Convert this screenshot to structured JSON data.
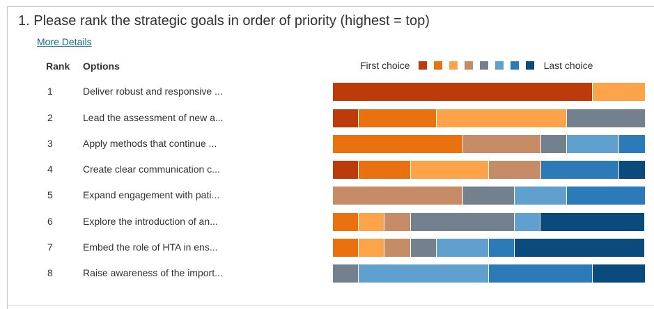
{
  "question": {
    "number": "1.",
    "title": "Please rank the strategic goals in order of priority (highest = top)"
  },
  "more_details": "More Details",
  "table": {
    "rank_header": "Rank",
    "options_header": "Options"
  },
  "legend": {
    "first_label": "First choice",
    "last_label": "Last choice",
    "colors": [
      "#bd3a0a",
      "#ea710f",
      "#fda349",
      "#c68c67",
      "#73808e",
      "#5fa0cf",
      "#2d7ab9",
      "#0a4a7c"
    ]
  },
  "rows": [
    {
      "rank": "1",
      "option": "Deliver robust and responsive ...",
      "segments": [
        {
          "choice": 1,
          "share": 0.833
        },
        {
          "choice": 3,
          "share": 0.167
        }
      ]
    },
    {
      "rank": "2",
      "option": "Lead the assessment of new a...",
      "segments": [
        {
          "choice": 1,
          "share": 0.083
        },
        {
          "choice": 2,
          "share": 0.25
        },
        {
          "choice": 3,
          "share": 0.417
        },
        {
          "choice": 5,
          "share": 0.25
        }
      ]
    },
    {
      "rank": "3",
      "option": "Apply methods that continue ...",
      "segments": [
        {
          "choice": 2,
          "share": 0.417
        },
        {
          "choice": 4,
          "share": 0.25
        },
        {
          "choice": 5,
          "share": 0.083
        },
        {
          "choice": 6,
          "share": 0.167
        },
        {
          "choice": 7,
          "share": 0.083
        }
      ]
    },
    {
      "rank": "4",
      "option": "Create clear communication c...",
      "segments": [
        {
          "choice": 1,
          "share": 0.083
        },
        {
          "choice": 2,
          "share": 0.167
        },
        {
          "choice": 3,
          "share": 0.25
        },
        {
          "choice": 4,
          "share": 0.167
        },
        {
          "choice": 7,
          "share": 0.25
        },
        {
          "choice": 8,
          "share": 0.083
        }
      ]
    },
    {
      "rank": "5",
      "option": "Expand engagement with pati...",
      "segments": [
        {
          "choice": 4,
          "share": 0.417
        },
        {
          "choice": 5,
          "share": 0.167
        },
        {
          "choice": 6,
          "share": 0.167
        },
        {
          "choice": 7,
          "share": 0.25
        }
      ]
    },
    {
      "rank": "6",
      "option": "Explore the introduction of an...",
      "segments": [
        {
          "choice": 2,
          "share": 0.083
        },
        {
          "choice": 3,
          "share": 0.083
        },
        {
          "choice": 4,
          "share": 0.083
        },
        {
          "choice": 5,
          "share": 0.333
        },
        {
          "choice": 6,
          "share": 0.083
        },
        {
          "choice": 8,
          "share": 0.333
        }
      ]
    },
    {
      "rank": "7",
      "option": "Embed the role of HTA in ens...",
      "segments": [
        {
          "choice": 2,
          "share": 0.083
        },
        {
          "choice": 3,
          "share": 0.083
        },
        {
          "choice": 4,
          "share": 0.083
        },
        {
          "choice": 5,
          "share": 0.083
        },
        {
          "choice": 6,
          "share": 0.167
        },
        {
          "choice": 7,
          "share": 0.083
        },
        {
          "choice": 8,
          "share": 0.417
        }
      ]
    },
    {
      "rank": "8",
      "option": "Raise awareness of the import...",
      "segments": [
        {
          "choice": 5,
          "share": 0.083
        },
        {
          "choice": 6,
          "share": 0.417
        },
        {
          "choice": 7,
          "share": 0.333
        },
        {
          "choice": 8,
          "share": 0.167
        }
      ]
    }
  ]
}
